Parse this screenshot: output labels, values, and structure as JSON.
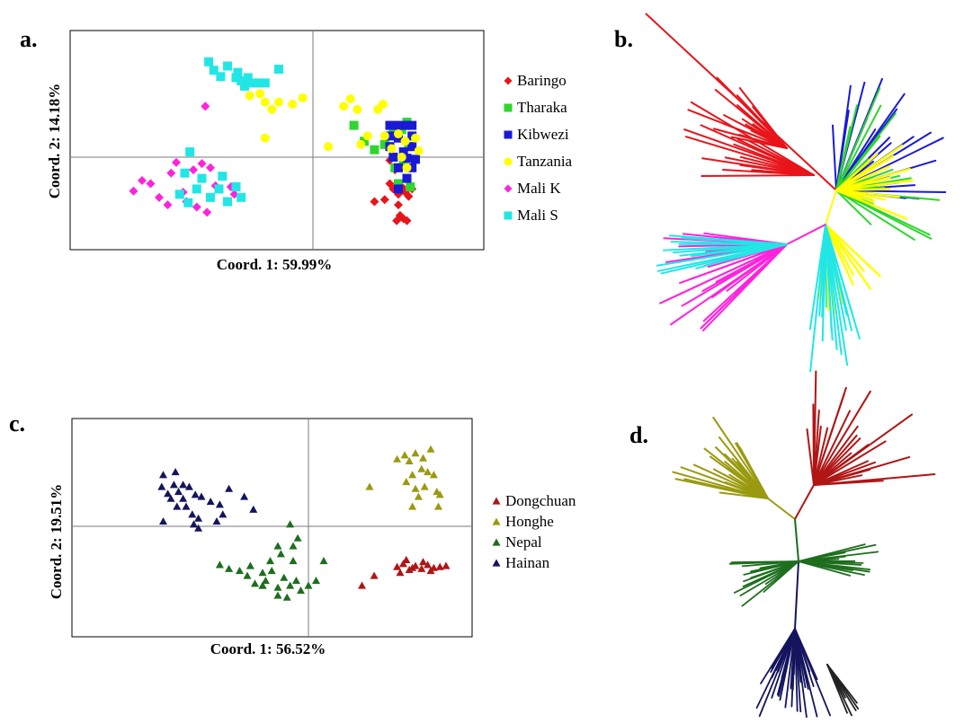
{
  "panels": [
    {
      "id": "a",
      "label": "a."
    },
    {
      "id": "b",
      "label": "b."
    },
    {
      "id": "c",
      "label": "c."
    },
    {
      "id": "d",
      "label": "d."
    }
  ],
  "colors": {
    "Baringo": "#e8141a",
    "Tharaka": "#2ed62e",
    "Kibwezi": "#1a1ad6",
    "Tanzania": "#ffff00",
    "Mali K": "#ff22dd",
    "Mali S": "#22e6e6",
    "Dongchuan": "#b01515",
    "Honghe": "#9a9a10",
    "Nepal": "#1d6e1d",
    "Hainan": "#15155e"
  },
  "chart_data": [
    {
      "panel": "a",
      "type": "scatter",
      "xlabel": "Coord. 1: 59.99%",
      "ylabel": "Coord. 2: 14.18%",
      "xlim": [
        -1,
        1
      ],
      "ylim": [
        -1,
        1
      ],
      "grid": false,
      "reference_lines": [
        0,
        0
      ],
      "legend_position": "right",
      "series": [
        {
          "name": "Baringo",
          "marker": "diamond",
          "points": [
            [
              0.45,
              -0.25
            ],
            [
              0.47,
              -0.3
            ],
            [
              0.5,
              -0.35
            ],
            [
              0.52,
              -0.28
            ],
            [
              0.54,
              -0.33
            ],
            [
              0.56,
              -0.37
            ],
            [
              0.49,
              -0.6
            ],
            [
              0.51,
              -0.55
            ],
            [
              0.53,
              -0.58
            ],
            [
              0.55,
              -0.6
            ],
            [
              0.5,
              -0.45
            ],
            [
              0.42,
              -0.4
            ],
            [
              0.36,
              -0.42
            ],
            [
              0.58,
              -0.3
            ],
            [
              0.48,
              -0.12
            ],
            [
              0.45,
              -0.03
            ]
          ]
        },
        {
          "name": "Tharaka",
          "marker": "square",
          "points": [
            [
              0.24,
              0.3
            ],
            [
              0.3,
              0.15
            ],
            [
              0.36,
              0.07
            ],
            [
              0.42,
              0.12
            ],
            [
              0.47,
              0.22
            ],
            [
              0.52,
              0.26
            ],
            [
              0.55,
              0.33
            ],
            [
              0.56,
              0.1
            ],
            [
              0.53,
              -0.05
            ],
            [
              0.5,
              -0.25
            ],
            [
              0.57,
              -0.28
            ],
            [
              0.48,
              -0.1
            ]
          ]
        },
        {
          "name": "Kibwezi",
          "marker": "square",
          "points": [
            [
              0.45,
              0.3
            ],
            [
              0.5,
              0.3
            ],
            [
              0.55,
              0.3
            ],
            [
              0.58,
              0.3
            ],
            [
              0.45,
              0.2
            ],
            [
              0.5,
              0.18
            ],
            [
              0.58,
              0.2
            ],
            [
              0.45,
              0.1
            ],
            [
              0.58,
              0.1
            ],
            [
              0.47,
              0
            ],
            [
              0.55,
              -0.01
            ],
            [
              0.6,
              -0.02
            ],
            [
              0.5,
              -0.1
            ],
            [
              0.58,
              -0.1
            ],
            [
              0.5,
              -0.3
            ],
            [
              0.55,
              -0.2
            ],
            [
              0.53,
              0.05
            ]
          ]
        },
        {
          "name": "Tanzania",
          "marker": "circle",
          "points": [
            [
              -0.37,
              0.58
            ],
            [
              -0.31,
              0.6
            ],
            [
              -0.28,
              0.52
            ],
            [
              -0.24,
              0.45
            ],
            [
              -0.2,
              0.52
            ],
            [
              -0.12,
              0.5
            ],
            [
              -0.06,
              0.56
            ],
            [
              -0.28,
              0.18
            ],
            [
              0.09,
              0.1
            ],
            [
              0.18,
              0.48
            ],
            [
              0.22,
              0.55
            ],
            [
              0.26,
              0.45
            ],
            [
              0.38,
              0.45
            ],
            [
              0.41,
              0.5
            ],
            [
              0.28,
              0.12
            ],
            [
              0.32,
              0.2
            ],
            [
              0.42,
              0.2
            ],
            [
              0.46,
              0.08
            ],
            [
              0.52,
              0.0
            ],
            [
              0.54,
              0.15
            ],
            [
              0.6,
              0.18
            ],
            [
              0.62,
              0.06
            ],
            [
              0.55,
              -0.1
            ],
            [
              0.5,
              0.22
            ]
          ]
        },
        {
          "name": "Mali K",
          "marker": "diamond",
          "points": [
            [
              -1.05,
              -0.32
            ],
            [
              -1.0,
              -0.22
            ],
            [
              -0.95,
              -0.25
            ],
            [
              -0.9,
              -0.38
            ],
            [
              -0.85,
              -0.45
            ],
            [
              -0.83,
              -0.15
            ],
            [
              -0.8,
              -0.05
            ],
            [
              -0.76,
              -0.33
            ],
            [
              -0.74,
              -0.42
            ],
            [
              -0.7,
              -0.12
            ],
            [
              -0.68,
              -0.47
            ],
            [
              -0.65,
              -0.06
            ],
            [
              -0.62,
              -0.52
            ],
            [
              -0.6,
              -0.1
            ],
            [
              -0.57,
              -0.27
            ],
            [
              -0.48,
              -0.28
            ],
            [
              -0.46,
              -0.35
            ],
            [
              -0.63,
              0.48
            ]
          ]
        },
        {
          "name": "Mali S",
          "marker": "square",
          "points": [
            [
              -0.61,
              0.9
            ],
            [
              -0.58,
              0.82
            ],
            [
              -0.5,
              0.86
            ],
            [
              -0.44,
              0.8
            ],
            [
              -0.42,
              0.72
            ],
            [
              -0.38,
              0.75
            ],
            [
              -0.35,
              0.7
            ],
            [
              -0.32,
              0.7
            ],
            [
              -0.28,
              0.7
            ],
            [
              -0.4,
              0.67
            ],
            [
              -0.45,
              0.75
            ],
            [
              -0.54,
              0.76
            ],
            [
              -0.2,
              0.83
            ],
            [
              -0.72,
              0.05
            ],
            [
              -0.75,
              -0.15
            ],
            [
              -0.68,
              -0.3
            ],
            [
              -0.65,
              -0.2
            ],
            [
              -0.6,
              -0.38
            ],
            [
              -0.55,
              -0.3
            ],
            [
              -0.53,
              -0.18
            ],
            [
              -0.5,
              -0.42
            ],
            [
              -0.45,
              -0.28
            ],
            [
              -0.42,
              -0.38
            ],
            [
              -0.73,
              -0.43
            ],
            [
              -0.78,
              -0.35
            ]
          ]
        }
      ]
    },
    {
      "panel": "c",
      "type": "scatter",
      "xlabel": "Coord. 1: 56.52%",
      "ylabel": "Coord. 2: 19.51%",
      "xlim": [
        -1,
        1
      ],
      "ylim": [
        -1,
        1
      ],
      "grid": false,
      "reference_lines": [
        0,
        0
      ],
      "legend_position": "right",
      "series": [
        {
          "name": "Dongchuan",
          "marker": "triangle",
          "points": [
            [
              0.58,
              -0.41
            ],
            [
              0.62,
              -0.38
            ],
            [
              0.66,
              -0.44
            ],
            [
              0.7,
              -0.4
            ],
            [
              0.74,
              -0.43
            ],
            [
              0.78,
              -0.39
            ],
            [
              0.82,
              -0.42
            ],
            [
              0.86,
              -0.41
            ],
            [
              0.9,
              -0.4
            ],
            [
              0.64,
              -0.34
            ],
            [
              0.68,
              -0.42
            ],
            [
              0.75,
              -0.36
            ],
            [
              0.8,
              -0.45
            ],
            [
              0.6,
              -0.47
            ],
            [
              0.43,
              -0.5
            ],
            [
              0.35,
              -0.6
            ]
          ]
        },
        {
          "name": "Honghe",
          "marker": "triangle",
          "points": [
            [
              0.58,
              0.68
            ],
            [
              0.63,
              0.72
            ],
            [
              0.66,
              0.66
            ],
            [
              0.7,
              0.74
            ],
            [
              0.75,
              0.69
            ],
            [
              0.8,
              0.78
            ],
            [
              0.74,
              0.58
            ],
            [
              0.78,
              0.55
            ],
            [
              0.82,
              0.52
            ],
            [
              0.68,
              0.52
            ],
            [
              0.64,
              0.45
            ],
            [
              0.76,
              0.4
            ],
            [
              0.84,
              0.35
            ],
            [
              0.86,
              0.32
            ],
            [
              0.72,
              0.3
            ],
            [
              0.68,
              0.2
            ],
            [
              0.85,
              0.2
            ],
            [
              0.7,
              0.38
            ],
            [
              0.4,
              0.4
            ]
          ]
        },
        {
          "name": "Nepal",
          "marker": "triangle",
          "points": [
            [
              -0.58,
              -0.39
            ],
            [
              -0.52,
              -0.43
            ],
            [
              -0.45,
              -0.45
            ],
            [
              -0.38,
              -0.4
            ],
            [
              -0.4,
              -0.5
            ],
            [
              -0.35,
              -0.58
            ],
            [
              -0.3,
              -0.47
            ],
            [
              -0.28,
              -0.55
            ],
            [
              -0.24,
              -0.45
            ],
            [
              -0.2,
              -0.62
            ],
            [
              -0.16,
              -0.52
            ],
            [
              -0.12,
              -0.6
            ],
            [
              -0.08,
              -0.55
            ],
            [
              -0.05,
              -0.65
            ],
            [
              -0.1,
              -0.35
            ],
            [
              -0.18,
              -0.28
            ],
            [
              -0.2,
              -0.2
            ],
            [
              -0.1,
              -0.2
            ],
            [
              -0.12,
              0.02
            ],
            [
              -0.07,
              -0.12
            ],
            [
              -0.25,
              -0.35
            ],
            [
              -0.3,
              -0.6
            ],
            [
              -0.2,
              -0.7
            ],
            [
              -0.14,
              -0.72
            ],
            [
              0.0,
              -0.6
            ],
            [
              0.05,
              -0.55
            ],
            [
              0.1,
              -0.35
            ],
            [
              -0.3,
              -0.6
            ]
          ]
        },
        {
          "name": "Hainan",
          "marker": "triangle",
          "points": [
            [
              -0.96,
              0.4
            ],
            [
              -0.92,
              0.33
            ],
            [
              -0.88,
              0.42
            ],
            [
              -0.85,
              0.35
            ],
            [
              -0.82,
              0.28
            ],
            [
              -0.9,
              0.28
            ],
            [
              -0.86,
              0.2
            ],
            [
              -0.8,
              0.2
            ],
            [
              -0.76,
              0.12
            ],
            [
              -0.72,
              0.08
            ],
            [
              -0.78,
              0.4
            ],
            [
              -0.82,
              0.42
            ],
            [
              -0.74,
              0.32
            ],
            [
              -0.7,
              0.3
            ],
            [
              -0.64,
              0.25
            ],
            [
              -0.58,
              0.22
            ],
            [
              -0.56,
              0.12
            ],
            [
              -0.52,
              0.38
            ],
            [
              -0.42,
              0.3
            ],
            [
              -0.36,
              0.17
            ],
            [
              -0.95,
              0.52
            ],
            [
              -0.87,
              0.55
            ],
            [
              -0.6,
              0.05
            ],
            [
              -0.95,
              0.05
            ],
            [
              -0.75,
              0.02
            ],
            [
              -0.72,
              -0.02
            ]
          ]
        }
      ]
    },
    {
      "panel": "b",
      "type": "unrooted tree",
      "branch_groups": [
        {
          "name": "Baringo",
          "count": 32
        },
        {
          "name": "Tharaka",
          "count": 22
        },
        {
          "name": "Kibwezi",
          "count": 22
        },
        {
          "name": "Tanzania",
          "count": 22
        },
        {
          "name": "Mali K",
          "count": 26
        },
        {
          "name": "Mali S",
          "count": 28
        }
      ]
    },
    {
      "panel": "d",
      "type": "unrooted tree",
      "branch_groups": [
        {
          "name": "Honghe",
          "count": 24
        },
        {
          "name": "Dongchuan",
          "count": 24
        },
        {
          "name": "Nepal",
          "count": 30
        },
        {
          "name": "Hainan",
          "count": 30
        }
      ]
    }
  ]
}
